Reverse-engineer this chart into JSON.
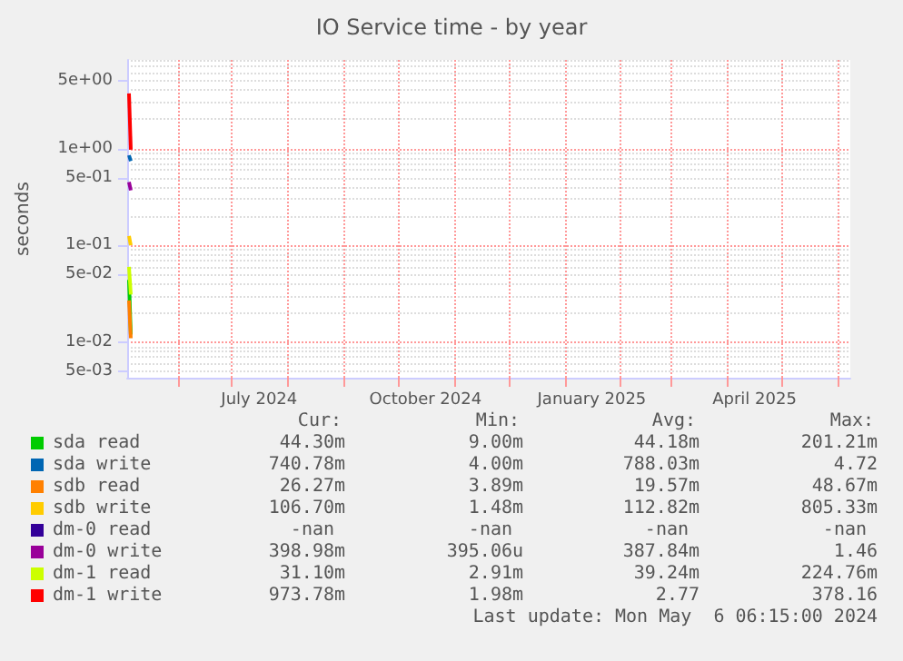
{
  "chart_data": {
    "type": "line",
    "title": "IO Service time - by year",
    "ylabel": "seconds",
    "log": "y",
    "grid": true,
    "legend": "bottom left",
    "marker": "none",
    "line_style": "solid",
    "x": [
      "2024-05-05",
      "2024-05-06"
    ],
    "xlim": [
      "2024-05-04",
      "2025-06-08"
    ],
    "xticks": [
      {
        "value": "2024-06-01",
        "label": null
      },
      {
        "value": "2024-07-01",
        "label": null
      },
      {
        "value": "2024-07-16",
        "label": "July 2024"
      },
      {
        "value": "2024-08-01",
        "label": null
      },
      {
        "value": "2024-09-01",
        "label": null
      },
      {
        "value": "2024-10-01",
        "label": null
      },
      {
        "value": "2024-10-16",
        "label": "October 2024"
      },
      {
        "value": "2024-11-01",
        "label": null
      },
      {
        "value": "2024-12-01",
        "label": null
      },
      {
        "value": "2025-01-01",
        "label": null
      },
      {
        "value": "2025-01-16",
        "label": "January 2025"
      },
      {
        "value": "2025-02-01",
        "label": null
      },
      {
        "value": "2025-03-01",
        "label": null
      },
      {
        "value": "2025-04-01",
        "label": null
      },
      {
        "value": "2025-04-16",
        "label": "April 2025"
      },
      {
        "value": "2025-05-01",
        "label": null
      },
      {
        "value": "2025-06-01",
        "label": null
      }
    ],
    "ylim": [
      0.0043,
      8.2
    ],
    "yticks": [
      {
        "value": 0.005,
        "label": "5e-03"
      },
      {
        "value": 0.01,
        "label": "1e-02"
      },
      {
        "value": 0.05,
        "label": "5e-02"
      },
      {
        "value": 0.1,
        "label": "1e-01"
      },
      {
        "value": 0.5,
        "label": "5e-01"
      },
      {
        "value": 1,
        "label": "1e+00"
      },
      {
        "value": 5,
        "label": "5e+00"
      }
    ],
    "series": [
      {
        "name": "sda read",
        "color": "#00cc00",
        "values": [
          0.044,
          0.012
        ]
      },
      {
        "name": "sda write",
        "color": "#0066b3",
        "values": [
          0.85,
          0.74
        ]
      },
      {
        "name": "sdb read",
        "color": "#ff8000",
        "values": [
          0.027,
          0.011
        ]
      },
      {
        "name": "sdb write",
        "color": "#ffcc00",
        "values": [
          0.125,
          0.1
        ]
      },
      {
        "name": "dm-0 read",
        "color": "#330099",
        "values": [
          null,
          null
        ]
      },
      {
        "name": "dm-0 write",
        "color": "#990099",
        "values": [
          0.45,
          0.37
        ]
      },
      {
        "name": "dm-1 read",
        "color": "#ccff00",
        "values": [
          0.06,
          0.031
        ]
      },
      {
        "name": "dm-1 write",
        "color": "#ff0000",
        "values": [
          3.7,
          0.97
        ]
      }
    ],
    "annotations": [
      "Cur:",
      "Min:",
      "Avg:",
      "Max:",
      "44.30m",
      "9.00m",
      "44.18m",
      "201.21m",
      "740.78m",
      "4.00m",
      "788.03m",
      "4.72",
      "26.27m",
      "3.89m",
      "19.57m",
      "48.67m",
      "106.70m",
      "1.48m",
      "112.82m",
      "805.33m",
      "-nan",
      "-nan",
      "-nan",
      "-nan",
      "398.98m",
      "395.06u",
      "387.84m",
      "1.46",
      "31.10m",
      "2.91m",
      "39.24m",
      "224.76m",
      "973.78m",
      "1.98m",
      "2.77",
      "378.16",
      "Last update: Mon May  6 06:15:00 2024"
    ]
  }
}
